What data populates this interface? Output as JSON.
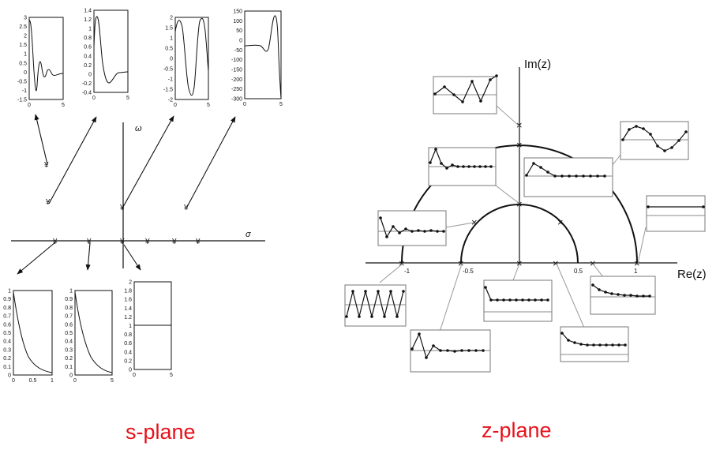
{
  "captions": {
    "s_plane": "s-plane",
    "z_plane": "z-plane"
  },
  "s_plane": {
    "axis_labels": {
      "sigma": "σ",
      "omega": "ω"
    },
    "pole_marker": "¥",
    "top_plots": [
      {
        "yticks": [
          "3",
          "2.5",
          "2",
          "1.5",
          "1",
          "0.5",
          "0",
          "-0.5",
          "-1",
          "-1.5"
        ],
        "xticks": [
          "0",
          "5"
        ]
      },
      {
        "yticks": [
          "1.4",
          "1.2",
          "1",
          "0.8",
          "0.6",
          "0.4",
          "0.2",
          "0",
          "-0.2",
          "-0.4"
        ],
        "xticks": [
          "0",
          "5"
        ]
      },
      {
        "yticks": [
          "2",
          "1.5",
          "1",
          "0.5",
          "0",
          "-0.5",
          "-1",
          "-1.5",
          "-2"
        ],
        "xticks": [
          "0",
          "5"
        ]
      },
      {
        "yticks": [
          "150",
          "100",
          "50",
          "0",
          "-50",
          "-100",
          "-150",
          "-200",
          "-250",
          "-300"
        ],
        "xticks": [
          "0",
          "5"
        ]
      }
    ],
    "bottom_plots": [
      {
        "yticks": [
          "1",
          "0.9",
          "0.8",
          "0.7",
          "0.6",
          "0.5",
          "0.4",
          "0.3",
          "0.2",
          "0.1",
          "0"
        ],
        "xticks": [
          "0",
          "0.5",
          "1"
        ]
      },
      {
        "yticks": [
          "1",
          "0.9",
          "0.8",
          "0.7",
          "0.6",
          "0.5",
          "0.4",
          "0.3",
          "0.2",
          "0.1",
          "0"
        ],
        "xticks": [
          "0",
          "5"
        ]
      },
      {
        "yticks": [
          "2",
          "1.8",
          "1.6",
          "1.4",
          "1.2",
          "1",
          "0.8",
          "0.6",
          "0.4",
          "0.2",
          "0"
        ],
        "xticks": [
          "0",
          "5"
        ]
      }
    ]
  },
  "z_plane": {
    "axis_labels": {
      "real": "Re(z)",
      "imag": "Im(z)"
    },
    "ticks": [
      "-1",
      "-0.5",
      "0.5",
      "1"
    ],
    "pole_marker": "×"
  },
  "colors": {
    "caption": "#e8101a",
    "ink": "#111111",
    "thumb_border": "#777777"
  }
}
